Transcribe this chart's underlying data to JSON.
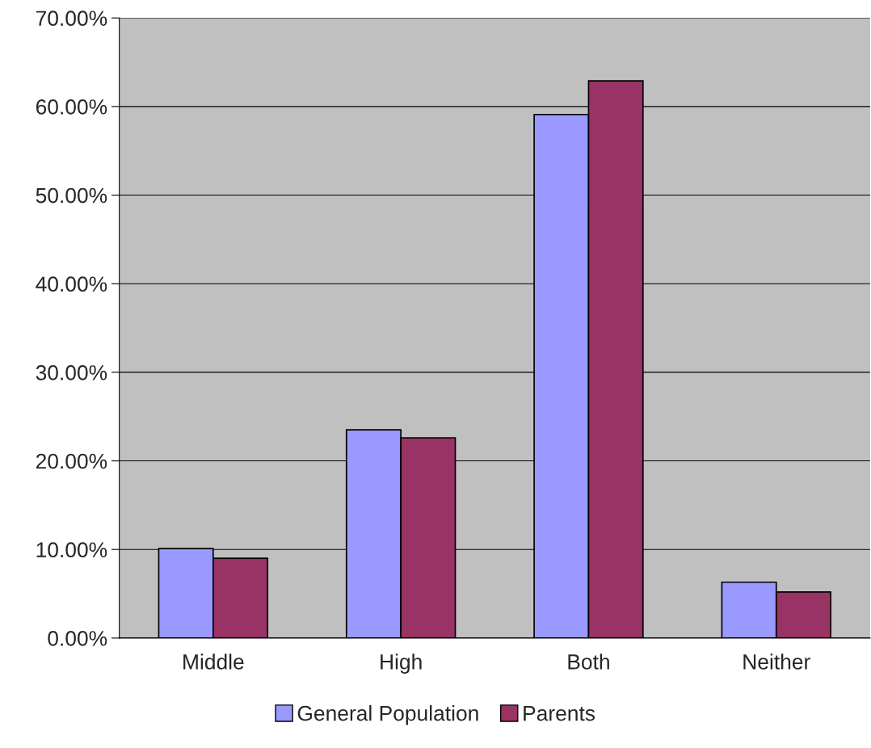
{
  "chart_data": {
    "type": "bar",
    "categories": [
      "Middle",
      "High",
      "Both",
      "Neither"
    ],
    "series": [
      {
        "name": "General Population",
        "color": "#9999ff",
        "values": [
          10.1,
          23.5,
          59.1,
          6.3
        ]
      },
      {
        "name": "Parents",
        "color": "#993366",
        "values": [
          9.0,
          22.6,
          62.9,
          5.2
        ]
      }
    ],
    "ylim": [
      0,
      70
    ],
    "yticks": [
      {
        "value": 0,
        "label": "0.00%"
      },
      {
        "value": 10,
        "label": "10.00%"
      },
      {
        "value": 20,
        "label": "20.00%"
      },
      {
        "value": 30,
        "label": "30.00%"
      },
      {
        "value": 40,
        "label": "40.00%"
      },
      {
        "value": 50,
        "label": "50.00%"
      },
      {
        "value": 60,
        "label": "60.00%"
      },
      {
        "value": 70,
        "label": "70.00%"
      }
    ],
    "grid": "y",
    "legend": "bottom"
  }
}
